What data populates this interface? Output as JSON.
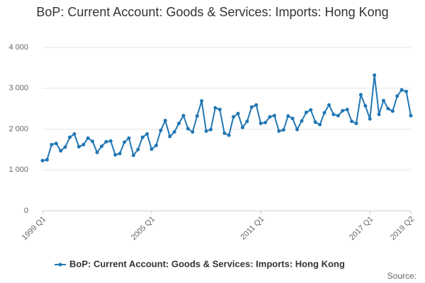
{
  "chart_data": {
    "type": "line",
    "title": "BoP: Current Account: Goods & Services: Imports: Hong Kong",
    "categories": [
      "1999 Q1",
      null,
      null,
      null,
      null,
      null,
      null,
      null,
      null,
      null,
      null,
      null,
      null,
      null,
      null,
      null,
      null,
      null,
      null,
      null,
      null,
      null,
      null,
      null,
      "2005 Q1",
      null,
      null,
      null,
      null,
      null,
      null,
      null,
      null,
      null,
      null,
      null,
      null,
      null,
      null,
      null,
      null,
      null,
      null,
      null,
      null,
      null,
      null,
      null,
      "2011 Q1",
      null,
      null,
      null,
      null,
      null,
      null,
      null,
      null,
      null,
      null,
      null,
      null,
      null,
      null,
      null,
      null,
      null,
      null,
      null,
      null,
      null,
      null,
      null,
      "2017 Q1",
      null,
      null,
      null,
      null,
      null,
      null,
      null,
      null,
      "2019 Q2"
    ],
    "series": [
      {
        "name": "BoP: Current Account: Goods & Services: Imports: Hong Kong",
        "color": "#2077b4",
        "values": [
          1230,
          1250,
          1620,
          1650,
          1470,
          1560,
          1800,
          1880,
          1570,
          1620,
          1780,
          1700,
          1430,
          1580,
          1690,
          1710,
          1370,
          1400,
          1680,
          1780,
          1360,
          1500,
          1800,
          1880,
          1510,
          1600,
          1970,
          2210,
          1820,
          1930,
          2140,
          2330,
          2010,
          1930,
          2320,
          2690,
          1950,
          1990,
          2520,
          2480,
          1900,
          1850,
          2300,
          2380,
          2040,
          2190,
          2540,
          2590,
          2140,
          2160,
          2300,
          2330,
          1950,
          1980,
          2320,
          2260,
          1990,
          2200,
          2410,
          2470,
          2170,
          2110,
          2400,
          2590,
          2360,
          2330,
          2450,
          2480,
          2190,
          2140,
          2840,
          2570,
          2250,
          3320,
          2360,
          2700,
          2500,
          2440,
          2810,
          2960,
          2920,
          2330
        ]
      }
    ],
    "ylim": [
      0,
      4000
    ],
    "yticks": [
      0,
      {
        "value": 1000,
        "label": "1 000"
      },
      {
        "value": 2000,
        "label": "2 000"
      },
      {
        "value": 3000,
        "label": "3 000"
      },
      {
        "value": 4000,
        "label": "4 000"
      }
    ],
    "grid": true,
    "legend": "bottom",
    "source": "Source:"
  }
}
